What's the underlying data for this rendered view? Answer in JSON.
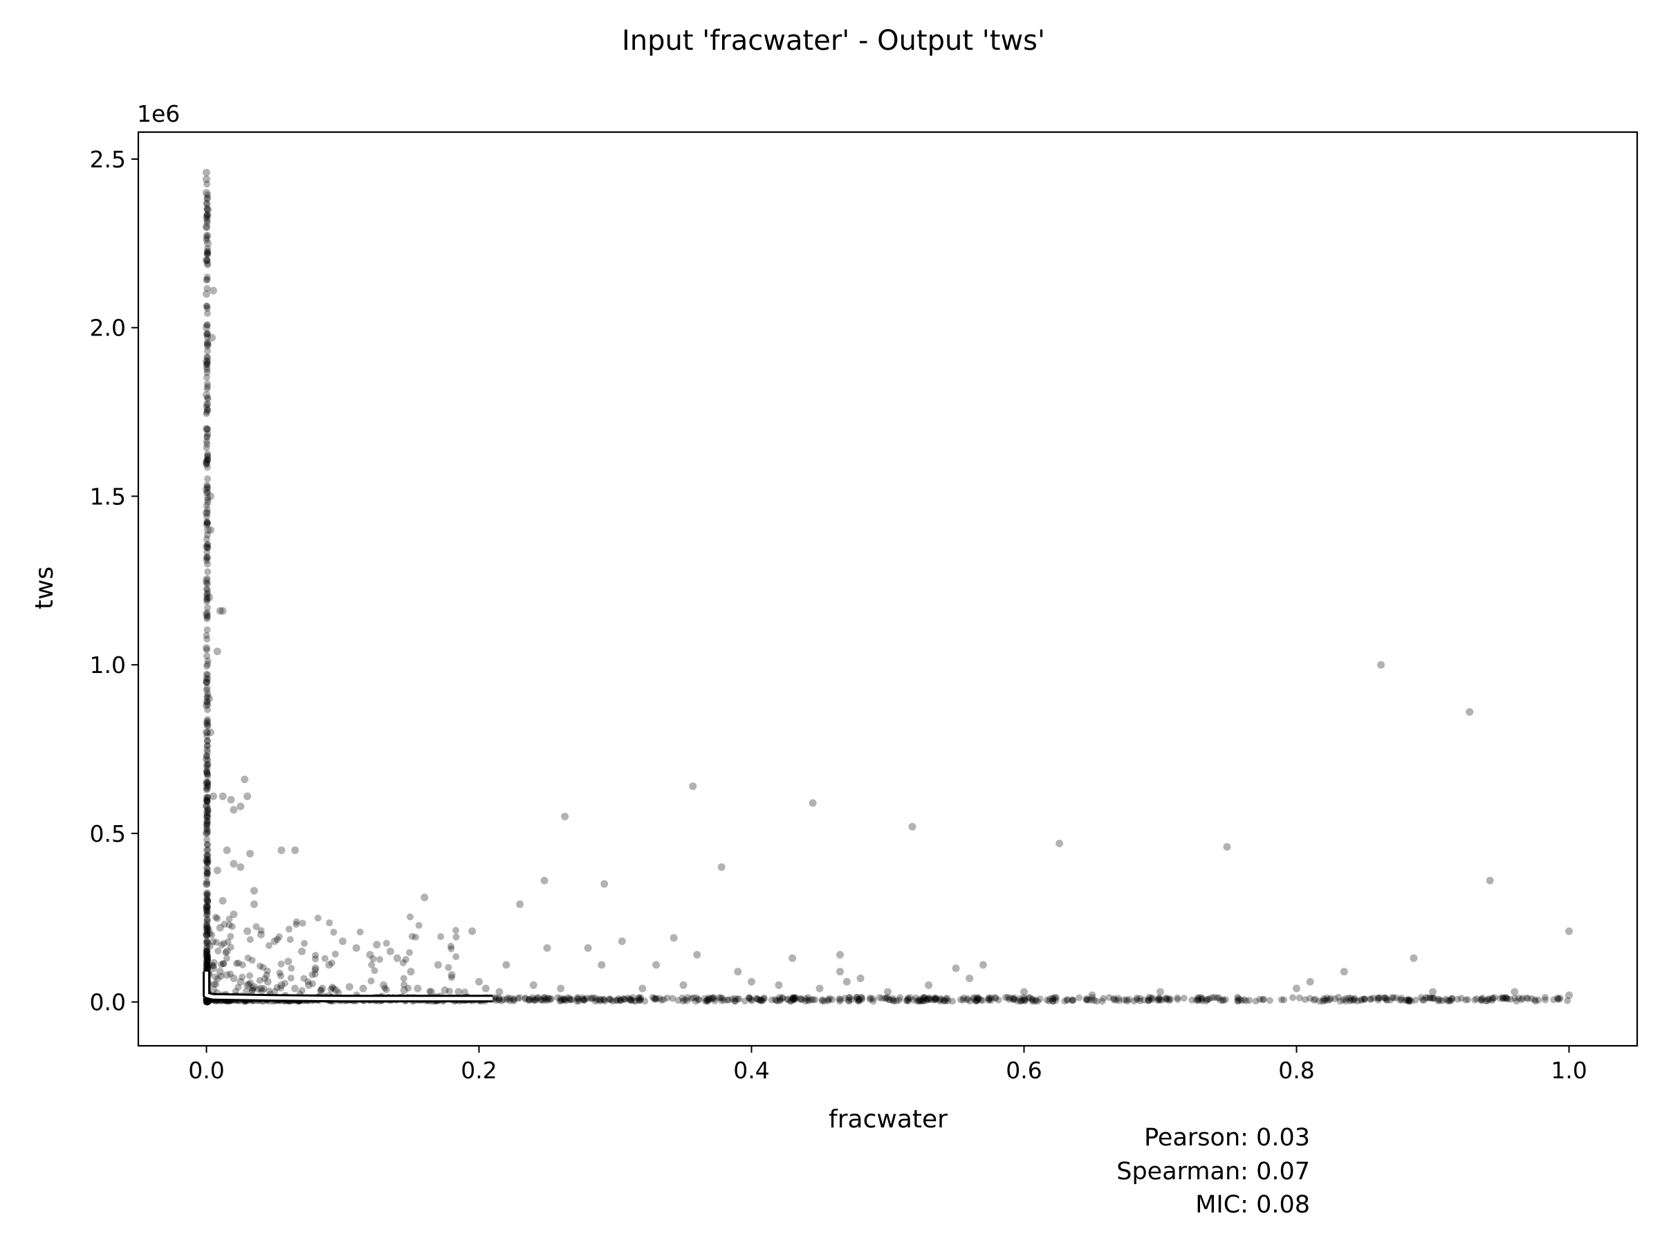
{
  "chart_data": {
    "type": "scatter",
    "title": "Input 'fracwater' - Output 'tws'",
    "xlabel": "fracwater",
    "ylabel": "tws",
    "y_offset_label": "1e6",
    "xlim": [
      -0.05,
      1.05
    ],
    "ylim": [
      -0.13,
      2.58
    ],
    "x_ticks": [
      {
        "value": 0.0,
        "label": "0.0"
      },
      {
        "value": 0.2,
        "label": "0.2"
      },
      {
        "value": 0.4,
        "label": "0.4"
      },
      {
        "value": 0.6,
        "label": "0.6"
      },
      {
        "value": 0.8,
        "label": "0.8"
      },
      {
        "value": 1.0,
        "label": "1.0"
      }
    ],
    "y_ticks": [
      {
        "value": 0.0,
        "label": "0.0"
      },
      {
        "value": 0.5,
        "label": "0.5"
      },
      {
        "value": 1.0,
        "label": "1.0"
      },
      {
        "value": 1.5,
        "label": "1.5"
      },
      {
        "value": 2.0,
        "label": "2.0"
      },
      {
        "value": 2.5,
        "label": "2.5"
      }
    ],
    "grid": false,
    "legend": "none",
    "marker_color": "#000000",
    "trend_line_color": "#ffffff",
    "trend_line": [
      [
        0.0,
        0.09
      ],
      [
        0.0,
        0.02
      ],
      [
        0.005,
        0.015
      ],
      [
        0.05,
        0.012
      ],
      [
        0.1,
        0.01
      ],
      [
        0.21,
        0.01
      ]
    ],
    "points": [
      [
        0.0,
        2.46
      ],
      [
        0.0,
        2.44
      ],
      [
        0.0,
        2.4
      ],
      [
        0.0,
        2.3
      ],
      [
        0.0,
        2.2
      ],
      [
        0.0,
        2.1
      ],
      [
        0.0,
        2.0
      ],
      [
        0.0,
        1.9
      ],
      [
        0.0,
        1.8
      ],
      [
        0.0,
        1.7
      ],
      [
        0.0,
        1.6
      ],
      [
        0.0,
        1.52
      ],
      [
        0.0,
        1.45
      ],
      [
        0.0,
        1.35
      ],
      [
        0.0,
        1.25
      ],
      [
        0.0,
        1.15
      ],
      [
        0.0,
        1.05
      ],
      [
        0.0,
        0.95
      ],
      [
        0.0,
        0.88
      ],
      [
        0.0,
        0.8
      ],
      [
        0.0,
        0.72
      ],
      [
        0.0,
        0.65
      ],
      [
        0.0,
        0.58
      ],
      [
        0.0,
        0.5
      ],
      [
        0.0,
        0.42
      ],
      [
        0.0,
        0.35
      ],
      [
        0.0,
        0.28
      ],
      [
        0.0,
        0.2
      ],
      [
        0.0,
        0.14
      ],
      [
        0.001,
        2.35
      ],
      [
        0.001,
        2.25
      ],
      [
        0.001,
        1.95
      ],
      [
        0.001,
        1.4
      ],
      [
        0.002,
        1.2
      ],
      [
        0.003,
        1.5
      ],
      [
        0.003,
        1.4
      ],
      [
        0.004,
        1.97
      ],
      [
        0.005,
        2.11
      ],
      [
        0.008,
        1.04
      ],
      [
        0.01,
        1.16
      ],
      [
        0.012,
        1.16
      ],
      [
        0.002,
        0.9
      ],
      [
        0.003,
        0.8
      ],
      [
        0.005,
        0.61
      ],
      [
        0.012,
        0.61
      ],
      [
        0.018,
        0.6
      ],
      [
        0.025,
        0.58
      ],
      [
        0.03,
        0.61
      ],
      [
        0.028,
        0.66
      ],
      [
        0.02,
        0.57
      ],
      [
        0.015,
        0.45
      ],
      [
        0.025,
        0.4
      ],
      [
        0.032,
        0.44
      ],
      [
        0.008,
        0.39
      ],
      [
        0.02,
        0.41
      ],
      [
        0.035,
        0.33
      ],
      [
        0.035,
        0.29
      ],
      [
        0.012,
        0.3
      ],
      [
        0.02,
        0.26
      ],
      [
        0.01,
        0.22
      ],
      [
        0.03,
        0.21
      ],
      [
        0.015,
        0.15
      ],
      [
        0.04,
        0.2
      ],
      [
        0.055,
        0.45
      ],
      [
        0.065,
        0.45
      ],
      [
        0.05,
        0.18
      ],
      [
        0.06,
        0.12
      ],
      [
        0.07,
        0.15
      ],
      [
        0.08,
        0.1
      ],
      [
        0.09,
        0.11
      ],
      [
        0.1,
        0.18
      ],
      [
        0.11,
        0.16
      ],
      [
        0.12,
        0.14
      ],
      [
        0.125,
        0.17
      ],
      [
        0.135,
        0.15
      ],
      [
        0.14,
        0.13
      ],
      [
        0.15,
        0.09
      ],
      [
        0.16,
        0.31
      ],
      [
        0.17,
        0.11
      ],
      [
        0.18,
        0.08
      ],
      [
        0.195,
        0.21
      ],
      [
        0.2,
        0.06
      ],
      [
        0.22,
        0.11
      ],
      [
        0.23,
        0.29
      ],
      [
        0.24,
        0.05
      ],
      [
        0.248,
        0.36
      ],
      [
        0.25,
        0.16
      ],
      [
        0.26,
        0.04
      ],
      [
        0.263,
        0.55
      ],
      [
        0.28,
        0.16
      ],
      [
        0.29,
        0.11
      ],
      [
        0.292,
        0.35
      ],
      [
        0.305,
        0.18
      ],
      [
        0.32,
        0.04
      ],
      [
        0.33,
        0.11
      ],
      [
        0.343,
        0.19
      ],
      [
        0.35,
        0.05
      ],
      [
        0.357,
        0.64
      ],
      [
        0.36,
        0.14
      ],
      [
        0.378,
        0.4
      ],
      [
        0.39,
        0.09
      ],
      [
        0.4,
        0.06
      ],
      [
        0.42,
        0.05
      ],
      [
        0.43,
        0.13
      ],
      [
        0.445,
        0.59
      ],
      [
        0.45,
        0.04
      ],
      [
        0.465,
        0.14
      ],
      [
        0.465,
        0.09
      ],
      [
        0.47,
        0.06
      ],
      [
        0.48,
        0.07
      ],
      [
        0.5,
        0.03
      ],
      [
        0.518,
        0.52
      ],
      [
        0.53,
        0.05
      ],
      [
        0.55,
        0.1
      ],
      [
        0.56,
        0.07
      ],
      [
        0.57,
        0.11
      ],
      [
        0.6,
        0.03
      ],
      [
        0.626,
        0.47
      ],
      [
        0.65,
        0.02
      ],
      [
        0.7,
        0.03
      ],
      [
        0.749,
        0.46
      ],
      [
        0.8,
        0.04
      ],
      [
        0.81,
        0.06
      ],
      [
        0.835,
        0.09
      ],
      [
        0.862,
        1.0
      ],
      [
        0.886,
        0.13
      ],
      [
        0.9,
        0.03
      ],
      [
        0.927,
        0.86
      ],
      [
        0.942,
        0.36
      ],
      [
        0.96,
        0.03
      ],
      [
        1.0,
        0.21
      ],
      [
        1.0,
        0.02
      ],
      [
        0.005,
        0.1
      ],
      [
        0.01,
        0.09
      ],
      [
        0.015,
        0.08
      ],
      [
        0.02,
        0.07
      ],
      [
        0.025,
        0.06
      ],
      [
        0.03,
        0.05
      ],
      [
        0.035,
        0.045
      ],
      [
        0.04,
        0.04
      ],
      [
        0.045,
        0.06
      ],
      [
        0.055,
        0.05
      ],
      [
        0.065,
        0.04
      ],
      [
        0.075,
        0.05
      ],
      [
        0.085,
        0.04
      ],
      [
        0.095,
        0.035
      ],
      [
        0.105,
        0.045
      ],
      [
        0.115,
        0.04
      ],
      [
        0.13,
        0.05
      ],
      [
        0.145,
        0.035
      ],
      [
        0.155,
        0.04
      ],
      [
        0.165,
        0.03
      ],
      [
        0.175,
        0.035
      ],
      [
        0.185,
        0.03
      ],
      [
        0.205,
        0.04
      ],
      [
        0.215,
        0.03
      ]
    ],
    "dense_band": {
      "x_range": [
        0.0,
        1.0
      ],
      "y_center": 0.008,
      "y_spread": 0.012
    }
  },
  "stats": {
    "pearson": "Pearson: 0.03",
    "spearman": "Spearman: 0.07",
    "mic": "MIC: 0.08"
  }
}
